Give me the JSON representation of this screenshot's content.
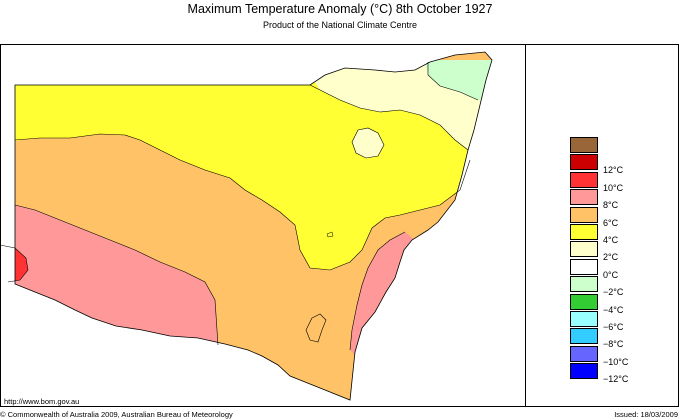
{
  "header": {
    "title": "Maximum Temperature Anomaly (°C)  8th October 1927",
    "subtitle": "Product of the National Climate Centre"
  },
  "footer": {
    "url": "http://www.bom.gov.au",
    "copyright": "© Commonwealth of Australia 2009, Australian Bureau of Meteorology",
    "issued": "Issued: 18/03/2009"
  },
  "legend": {
    "items": [
      {
        "label": "",
        "color": "#99663a"
      },
      {
        "label": "12°C",
        "color": "#cc0000"
      },
      {
        "label": "10°C",
        "color": "#ff3333"
      },
      {
        "label": "8°C",
        "color": "#ff9999"
      },
      {
        "label": "6°C",
        "color": "#ffc266"
      },
      {
        "label": "4°C",
        "color": "#ffff33"
      },
      {
        "label": "2°C",
        "color": "#ffffcc"
      },
      {
        "label": "0°C",
        "color": "#ffffff"
      },
      {
        "label": "−2°C",
        "color": "#ccffcc"
      },
      {
        "label": "−4°C",
        "color": "#33cc33"
      },
      {
        "label": "−6°C",
        "color": "#99ffff"
      },
      {
        "label": "−8°C",
        "color": "#33ccff"
      },
      {
        "label": "−10°C",
        "color": "#6666ff"
      },
      {
        "label": "−12°C",
        "color": "#0000ff"
      }
    ]
  },
  "map_colors": {
    "red": "#ff3333",
    "pink": "#ff9999",
    "orange": "#ffc266",
    "yellow": "#ffff33",
    "cream": "#ffffcc",
    "green": "#ccffcc"
  }
}
